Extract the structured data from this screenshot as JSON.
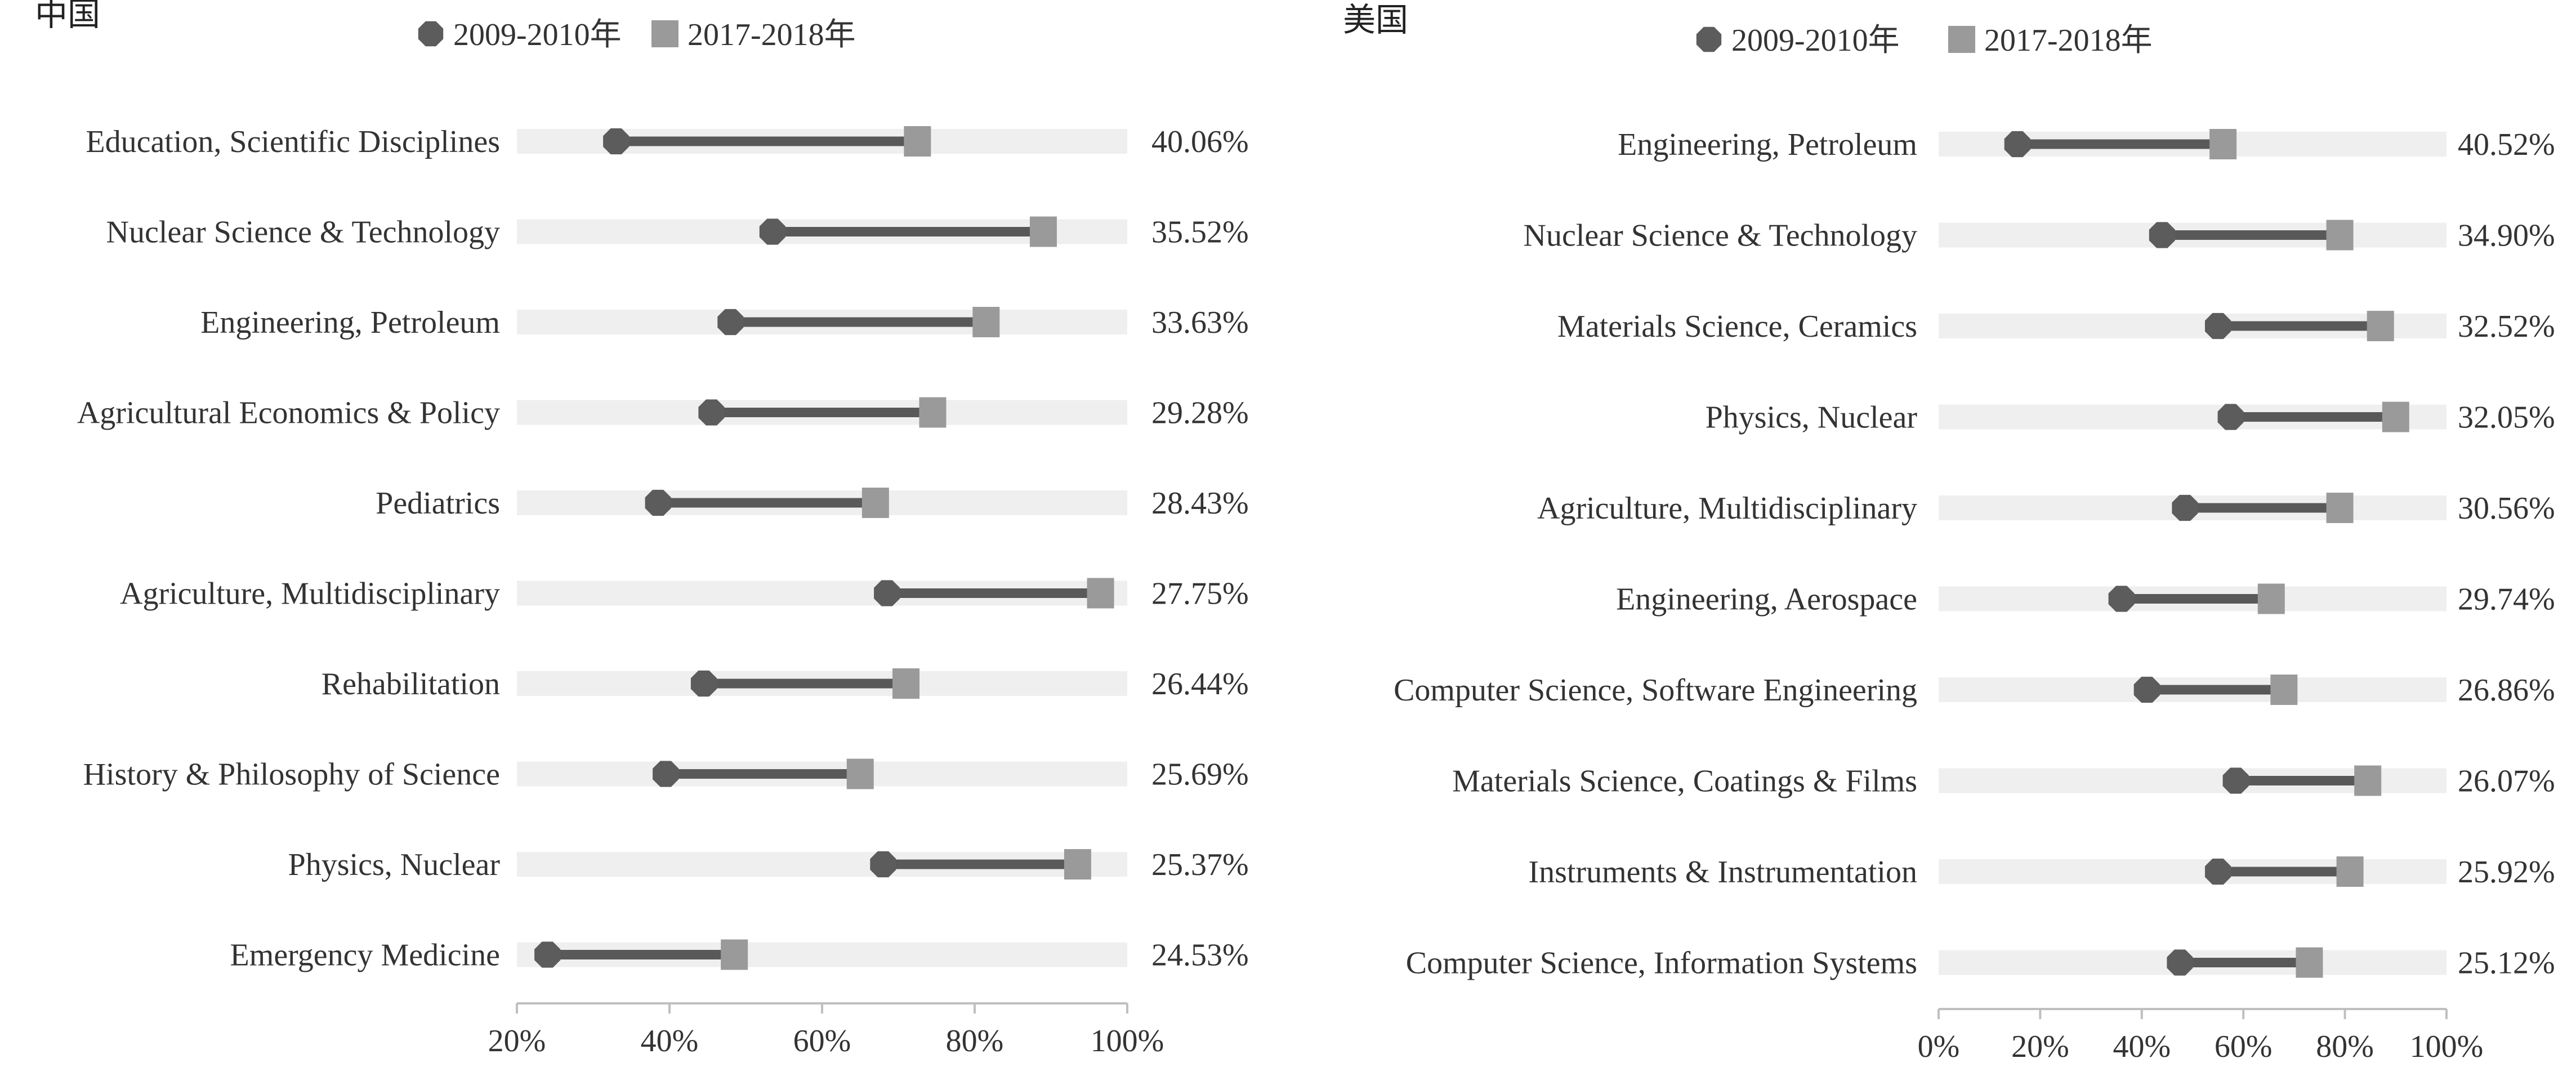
{
  "chart_data": [
    {
      "type": "dumbbell",
      "title": "中国",
      "legend": [
        {
          "name": "2009-2010年",
          "marker": "circle"
        },
        {
          "name": "2017-2018年",
          "marker": "square"
        }
      ],
      "xlim": [
        20,
        100
      ],
      "xticks": [
        "20%",
        "40%",
        "60%",
        "80%",
        "100%"
      ],
      "tick_values": [
        20,
        40,
        60,
        80,
        100
      ],
      "categories": [
        "Education, Scientific Disciplines",
        "Nuclear Science & Technology",
        "Engineering, Petroleum",
        "Agricultural Economics & Policy",
        "Pediatrics",
        "Agriculture, Multidisciplinary",
        "Rehabilitation",
        "History & Philosophy of Science",
        "Physics, Nuclear",
        "Emergency Medicine"
      ],
      "start": [
        33,
        53.5,
        48,
        45.5,
        38.5,
        68.5,
        44.5,
        39.5,
        68,
        24
      ],
      "end": [
        72.5,
        89,
        81.5,
        74.5,
        67,
        96.5,
        71,
        65,
        93.5,
        48.5
      ],
      "change_labels": [
        "40.06%",
        "35.52%",
        "33.63%",
        "29.28%",
        "28.43%",
        "27.75%",
        "26.44%",
        "25.69%",
        "25.37%",
        "24.53%"
      ]
    },
    {
      "type": "dumbbell",
      "title": "美国",
      "legend": [
        {
          "name": "2009-2010年",
          "marker": "circle"
        },
        {
          "name": "2017-2018年",
          "marker": "square"
        }
      ],
      "xlim": [
        0,
        100
      ],
      "xticks": [
        "0%",
        "20%",
        "40%",
        "60%",
        "80%",
        "100%"
      ],
      "tick_values": [
        0,
        20,
        40,
        60,
        80,
        100
      ],
      "categories": [
        "Engineering, Petroleum",
        "Nuclear Science & Technology",
        "Materials Science, Ceramics",
        "Physics, Nuclear",
        "Agriculture, Multidisciplinary",
        "Engineering, Aerospace",
        "Computer Science, Software Engineering",
        "Materials Science, Coatings & Films",
        "Instruments & Instrumentation",
        "Computer Science, Information Systems"
      ],
      "start": [
        15.5,
        44,
        55,
        57.5,
        48.5,
        36,
        41,
        58.5,
        55,
        47.5
      ],
      "end": [
        56,
        79,
        87,
        90,
        79,
        65.5,
        68,
        84.5,
        81,
        73
      ],
      "change_labels": [
        "40.52%",
        "34.90%",
        "32.52%",
        "32.05%",
        "30.56%",
        "29.74%",
        "26.86%",
        "26.07%",
        "25.92%",
        "25.12%"
      ]
    }
  ],
  "colors": {
    "band": "#efefef",
    "line": "#595959",
    "start_marker": "#5c5c5c",
    "end_marker": "#9a9a9a",
    "axis": "#bfbfbf",
    "text": "#333333"
  }
}
